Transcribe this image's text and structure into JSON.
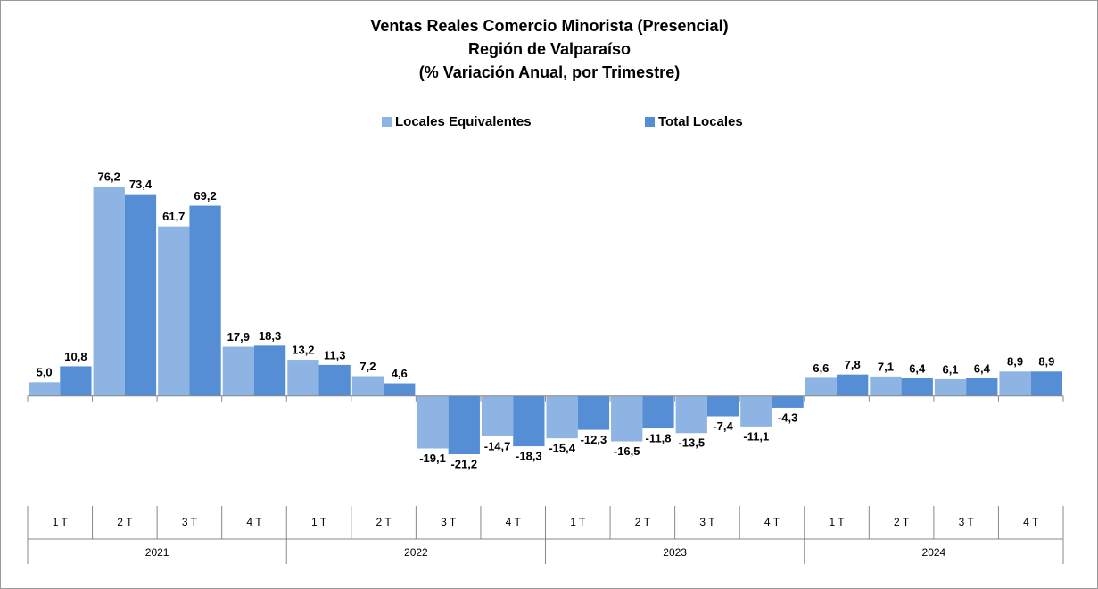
{
  "chart_data": {
    "type": "bar",
    "title": [
      "Ventas Reales Comercio Minorista (Presencial)",
      "Región de Valparaíso",
      "(% Variación Anual, por Trimestre)"
    ],
    "categories": [
      "1 T",
      "2 T",
      "3 T",
      "4 T",
      "1 T",
      "2 T",
      "3 T",
      "4 T",
      "1 T",
      "2 T",
      "3 T",
      "4 T",
      "1 T",
      "2 T",
      "3 T",
      "4 T"
    ],
    "years": [
      "2021",
      "2022",
      "2023",
      "2024"
    ],
    "series": [
      {
        "name": "Locales Equivalentes",
        "color": "#8DB4E2",
        "values": [
          5.0,
          76.2,
          61.7,
          17.9,
          13.2,
          7.2,
          -19.1,
          -14.7,
          -15.4,
          -16.5,
          -13.5,
          -11.1,
          6.6,
          7.1,
          6.1,
          8.9
        ],
        "value_labels": [
          "5,0",
          "76,2",
          "61,7",
          "17,9",
          "13,2",
          "7,2",
          "-19,1",
          "-14,7",
          "-15,4",
          "-16,5",
          "-13,5",
          "-11,1",
          "6,6",
          "7,1",
          "6,1",
          "8,9"
        ]
      },
      {
        "name": "Total Locales",
        "color": "#558ED5",
        "values": [
          10.8,
          73.4,
          69.2,
          18.3,
          11.3,
          4.6,
          -21.2,
          -18.3,
          -12.3,
          -11.8,
          -7.4,
          -4.3,
          7.8,
          6.4,
          6.4,
          8.9
        ],
        "value_labels": [
          "10,8",
          "73,4",
          "69,2",
          "18,3",
          "11,3",
          "4,6",
          "-21,2",
          "-18,3",
          "-12,3",
          "-11,8",
          "-7,4",
          "-4,3",
          "7,8",
          "6,4",
          "6,4",
          "8,9"
        ]
      }
    ],
    "legend": "top"
  }
}
